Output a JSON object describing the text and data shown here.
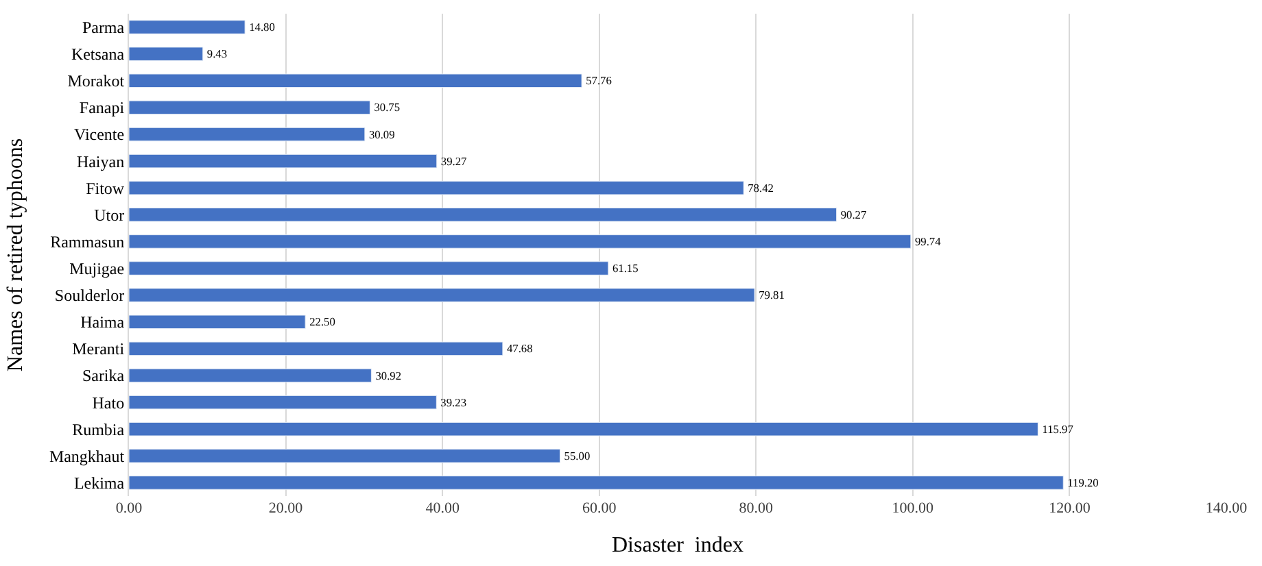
{
  "chart_data": {
    "type": "bar",
    "orientation": "horizontal",
    "xlabel": "Disaster  index",
    "ylabel": "Names of retired typhoons",
    "categories": [
      "Parma",
      "Ketsana",
      "Morakot",
      "Fanapi",
      "Vicente",
      "Haiyan",
      "Fitow",
      "Utor",
      "Rammasun",
      "Mujigae",
      "Soulderlor",
      "Haima",
      "Meranti",
      "Sarika",
      "Hato",
      "Rumbia",
      "Mangkhaut",
      "Lekima"
    ],
    "values": [
      14.8,
      9.43,
      57.76,
      30.75,
      30.09,
      39.27,
      78.42,
      90.27,
      99.74,
      61.15,
      79.81,
      22.5,
      47.68,
      30.92,
      39.23,
      115.97,
      55.0,
      119.2
    ],
    "value_labels": [
      "14.80",
      "9.43",
      "57.76",
      "30.75",
      "30.09",
      "39.27",
      "78.42",
      "90.27",
      "99.74",
      "61.15",
      "79.81",
      "22.50",
      "47.68",
      "30.92",
      "39.23",
      "115.97",
      "55.00",
      "119.20"
    ],
    "color": "#4472c4",
    "xlim": [
      0,
      140
    ],
    "xticks": [
      {
        "value": 0,
        "label": "0.00"
      },
      {
        "value": 20,
        "label": "20.00"
      },
      {
        "value": 40,
        "label": "40.00"
      },
      {
        "value": 60,
        "label": "60.00"
      },
      {
        "value": 80,
        "label": "80.00"
      },
      {
        "value": 100,
        "label": "100.00"
      },
      {
        "value": 120,
        "label": "120.00"
      },
      {
        "value": 140,
        "label": "140.00"
      }
    ],
    "grid": "x",
    "legend": false
  }
}
